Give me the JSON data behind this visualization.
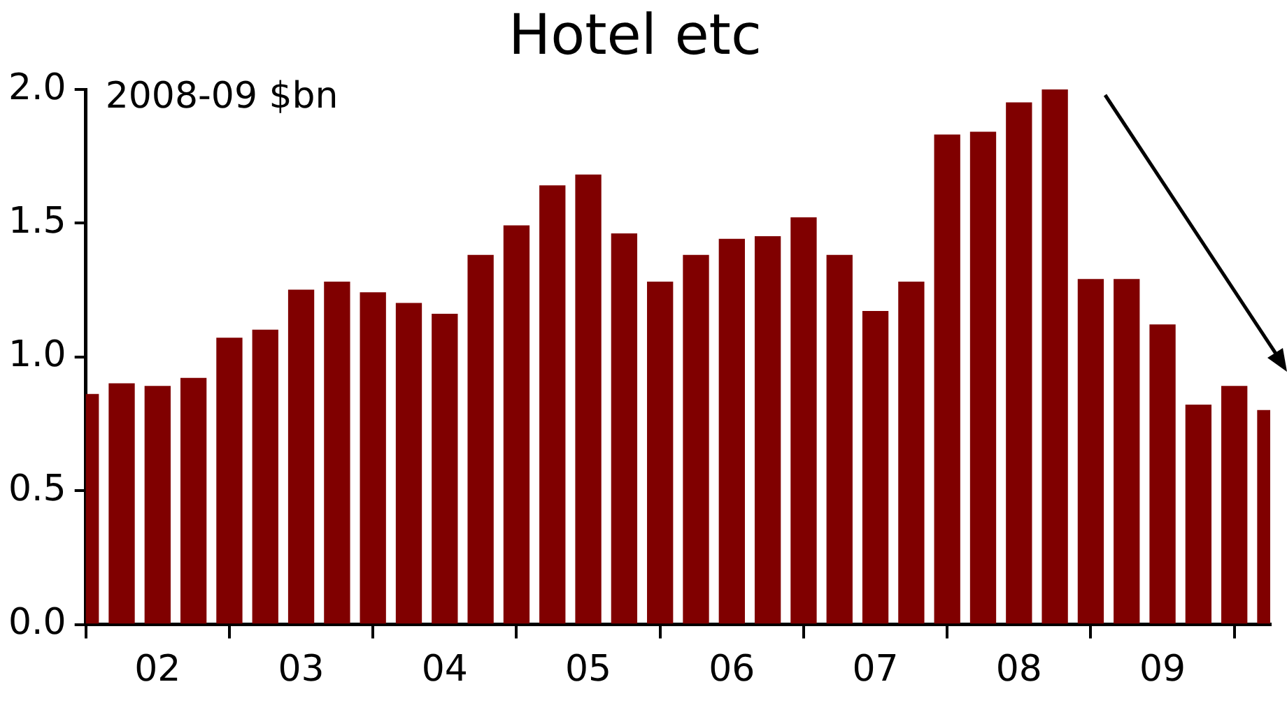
{
  "chart_data": {
    "type": "bar",
    "title": "Hotel etc",
    "ylabel": "2008-09 $bn",
    "categories": [
      null,
      null,
      "02",
      null,
      null,
      null,
      "03",
      null,
      null,
      null,
      "04",
      null,
      null,
      null,
      "05",
      null,
      null,
      null,
      "06",
      null,
      null,
      null,
      "07",
      null,
      null,
      null,
      "08",
      null,
      null,
      null,
      "09",
      null,
      null,
      null
    ],
    "values": [
      0.86,
      0.9,
      0.89,
      0.92,
      1.07,
      1.1,
      1.25,
      1.28,
      1.24,
      1.2,
      1.16,
      1.38,
      1.49,
      1.64,
      1.68,
      1.46,
      1.28,
      1.38,
      1.44,
      1.45,
      1.52,
      1.38,
      1.17,
      1.28,
      1.83,
      1.84,
      1.95,
      2.0,
      1.29,
      1.29,
      1.12,
      0.82,
      0.89,
      0.8
    ],
    "color": "#800000",
    "ylim": [
      0,
      2
    ],
    "yticks": [
      {
        "value": 0,
        "label": "0.0"
      },
      {
        "value": 0.5,
        "label": "0.5"
      },
      {
        "value": 1,
        "label": "1.0"
      },
      {
        "value": 1.5,
        "label": "1.5"
      },
      {
        "value": 2,
        "label": "2.0"
      }
    ],
    "grid": false,
    "legend": false
  }
}
